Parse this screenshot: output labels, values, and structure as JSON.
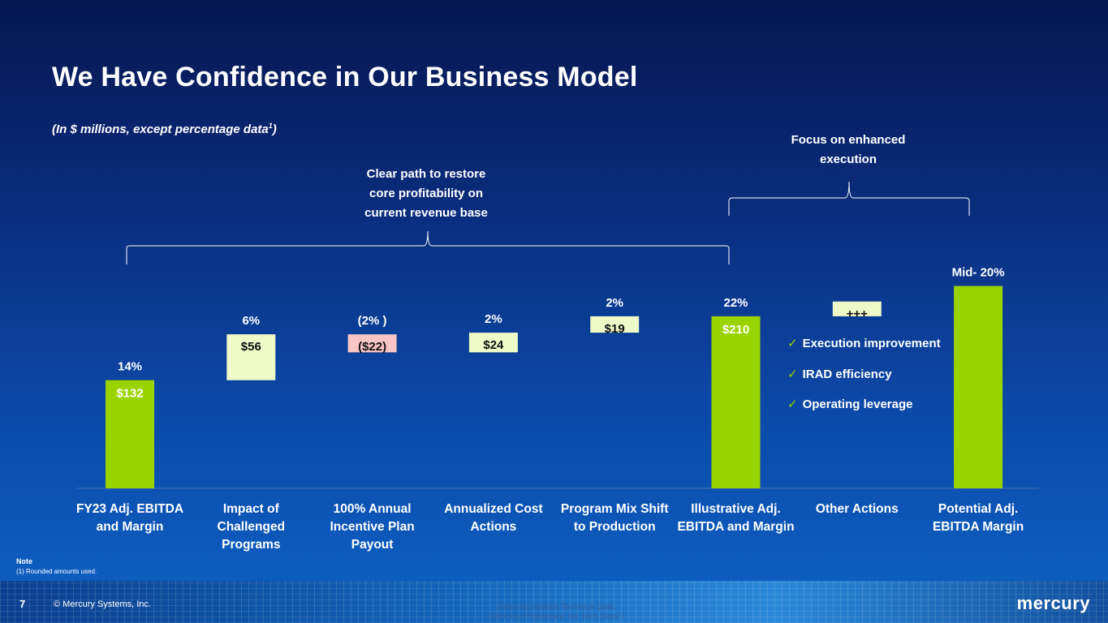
{
  "title": "We Have Confidence in Our Business Model",
  "subtitle_main": "(In $ millions,  except percentage  data",
  "subtitle_sup": "1",
  "subtitle_end": ")",
  "callouts": {
    "restore": [
      "Clear path to restore",
      "core profitability  on",
      "current revenue base"
    ],
    "execution": [
      "Focus on enhanced",
      "execution"
    ]
  },
  "checklist": [
    "Execution improvement",
    "IRAD efficiency",
    "Operating leverage"
  ],
  "note_heading": "Note",
  "note_text": "(1)    Rounded amounts  used.",
  "footer": {
    "page": "7",
    "copyright": "© Mercury Systems, Inc.",
    "classification": [
      "Does not contain Technical Data",
      "/ Mercury Proprietary/ No  Tech Data/ /"
    ],
    "logo": "mercury"
  },
  "colors": {
    "total": "#9ad400",
    "increase": "#eefbc8",
    "decrease": "#f8c4c4",
    "text_dark": "#111111"
  },
  "chart_data": {
    "type": "bar",
    "subtype": "waterfall",
    "unit": "$ millions",
    "categories": [
      [
        "FY23 Adj. EBITDA",
        "and Margin"
      ],
      [
        "Impact of",
        "Challenged",
        "Programs"
      ],
      [
        "100% Annual",
        "Incentive Plan",
        "Payout"
      ],
      [
        "Annualized Cost",
        "Actions"
      ],
      [
        "Program Mix Shift",
        "to Production"
      ],
      [
        "Illustrative Adj.",
        "EBITDA and Margin"
      ],
      [
        "Other Actions"
      ],
      [
        "Potential Adj.",
        "EBITDA Margin"
      ]
    ],
    "bars": [
      {
        "kind": "total",
        "start": 0,
        "end": 132,
        "label": "$132",
        "pct": "14%"
      },
      {
        "kind": "increase",
        "start": 132,
        "end": 188,
        "label": "$56",
        "pct": "6%"
      },
      {
        "kind": "decrease",
        "start": 166,
        "end": 188,
        "label": "($22)",
        "pct": "(2% )"
      },
      {
        "kind": "increase",
        "start": 166,
        "end": 190,
        "label": "$24",
        "pct": "2%"
      },
      {
        "kind": "increase",
        "start": 190,
        "end": 210,
        "label": "$19",
        "pct": "2%"
      },
      {
        "kind": "total",
        "start": 0,
        "end": 210,
        "label": "$210",
        "pct": "22%"
      },
      {
        "kind": "increase",
        "start": 210,
        "end": 228,
        "label": "+++",
        "pct": ""
      },
      {
        "kind": "total",
        "start": 0,
        "end": 247,
        "label": "",
        "pct": "Mid- 20%"
      }
    ]
  }
}
